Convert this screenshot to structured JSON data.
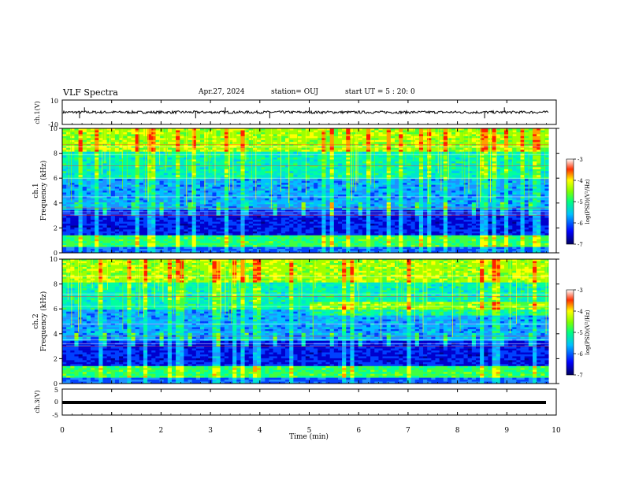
{
  "header": {
    "title": "VLF Spectra",
    "date": "Apr.27, 2024",
    "station": "station= OUJ",
    "start_ut": "start UT =  5 : 20: 0"
  },
  "panels": {
    "ch1_wave_label": "ch.1(V)",
    "ch1_spec_label_top": "ch.1",
    "ch1_spec_label_bottom": "Frequency (kHz)",
    "ch2_spec_label_top": "ch.2",
    "ch2_spec_label_bottom": "Frequency (kHz)",
    "ch3_wave_label": "ch.3(V)",
    "colorbar_label": "log(PSD)(V²/Hz)"
  },
  "chart_data": {
    "type": "heatmap",
    "xlabel": "Time (min)",
    "xlim": [
      0,
      10
    ],
    "x_ticks": [
      "0",
      "1",
      "2",
      "3",
      "4",
      "5",
      "6",
      "7",
      "8",
      "9",
      "10"
    ],
    "data_end_min": 9.85,
    "waveform_ch1": {
      "ylim": [
        -10,
        10
      ],
      "y_ticks": [
        "10",
        "-10"
      ],
      "baseline": 0
    },
    "spectrogram_ch1": {
      "ylim": [
        0,
        10
      ],
      "y_ticks": [
        "0",
        "2",
        "4",
        "6",
        "8",
        "10"
      ],
      "unit": "kHz"
    },
    "spectrogram_ch2": {
      "ylim": [
        0,
        10
      ],
      "y_ticks": [
        "0",
        "2",
        "4",
        "6",
        "8",
        "10"
      ],
      "unit": "kHz"
    },
    "waveform_ch3": {
      "ylim": [
        -5,
        5
      ],
      "y_ticks": [
        "5",
        "0",
        "-5"
      ],
      "baseline": -1
    },
    "colorbar": {
      "range": [
        -7,
        -3
      ],
      "ticks": [
        "-3",
        "-4",
        "-5",
        "-6",
        "-7"
      ]
    },
    "colors": {
      "low": "#00008b",
      "mid_low": "#1e90ff",
      "mid": "#00ced1",
      "mid_high": "#7cfc00",
      "high": "#ffff00",
      "top": "#ff0000",
      "max": "#ffffff"
    }
  }
}
